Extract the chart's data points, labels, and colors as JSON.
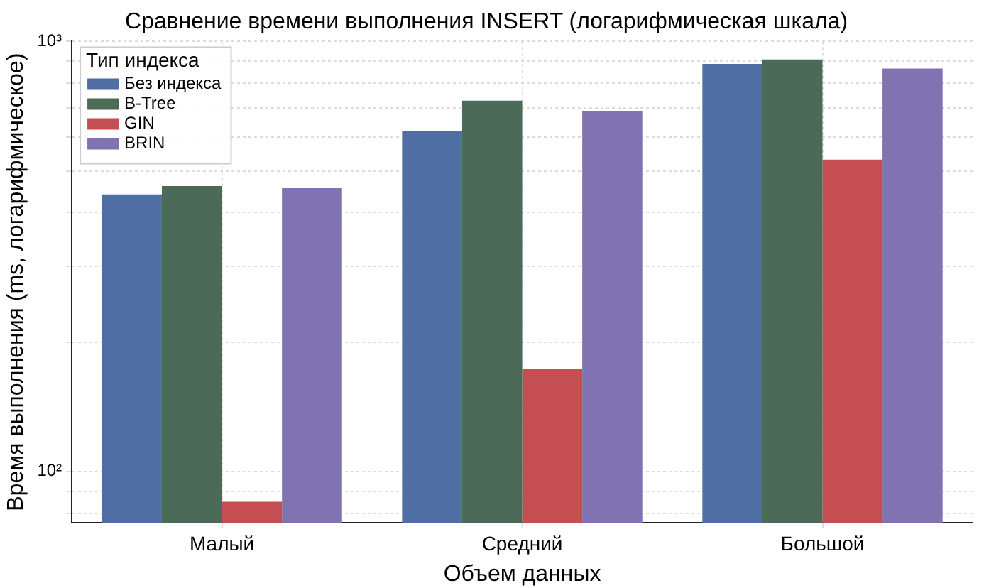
{
  "chart_data": {
    "type": "bar",
    "title": "Сравнение времени выполнения INSERT (логарифмическая шкала)",
    "xlabel": "Объем данных",
    "ylabel": "Время выполнения (ms, логарифмическое)",
    "legend_title": "Тип индекса",
    "categories": [
      "Малый",
      "Средний",
      "Большой"
    ],
    "series": [
      {
        "name": "Без индекса",
        "color": "#4e6ea4",
        "values": [
          441,
          618,
          887
        ]
      },
      {
        "name": "B-Tree",
        "color": "#4b6a58",
        "values": [
          461,
          728,
          908
        ]
      },
      {
        "name": "GIN",
        "color": "#c44e52",
        "values": [
          85,
          173,
          531
        ]
      },
      {
        "name": "BRIN",
        "color": "#8172b2",
        "values": [
          456,
          688,
          865
        ]
      }
    ],
    "log": "y",
    "ylim": [
      76,
      1000
    ],
    "yticks": [
      {
        "value": 80,
        "label": null
      },
      {
        "value": 90,
        "label": null
      },
      {
        "value": 100,
        "label": "10²"
      },
      {
        "value": 200,
        "label": null
      },
      {
        "value": 300,
        "label": null
      },
      {
        "value": 400,
        "label": null
      },
      {
        "value": 500,
        "label": null
      },
      {
        "value": 600,
        "label": null
      },
      {
        "value": 700,
        "label": null
      },
      {
        "value": 800,
        "label": null
      },
      {
        "value": 900,
        "label": null
      },
      {
        "value": 1000,
        "label": "10³"
      }
    ],
    "grid": true,
    "legend": "top left"
  }
}
